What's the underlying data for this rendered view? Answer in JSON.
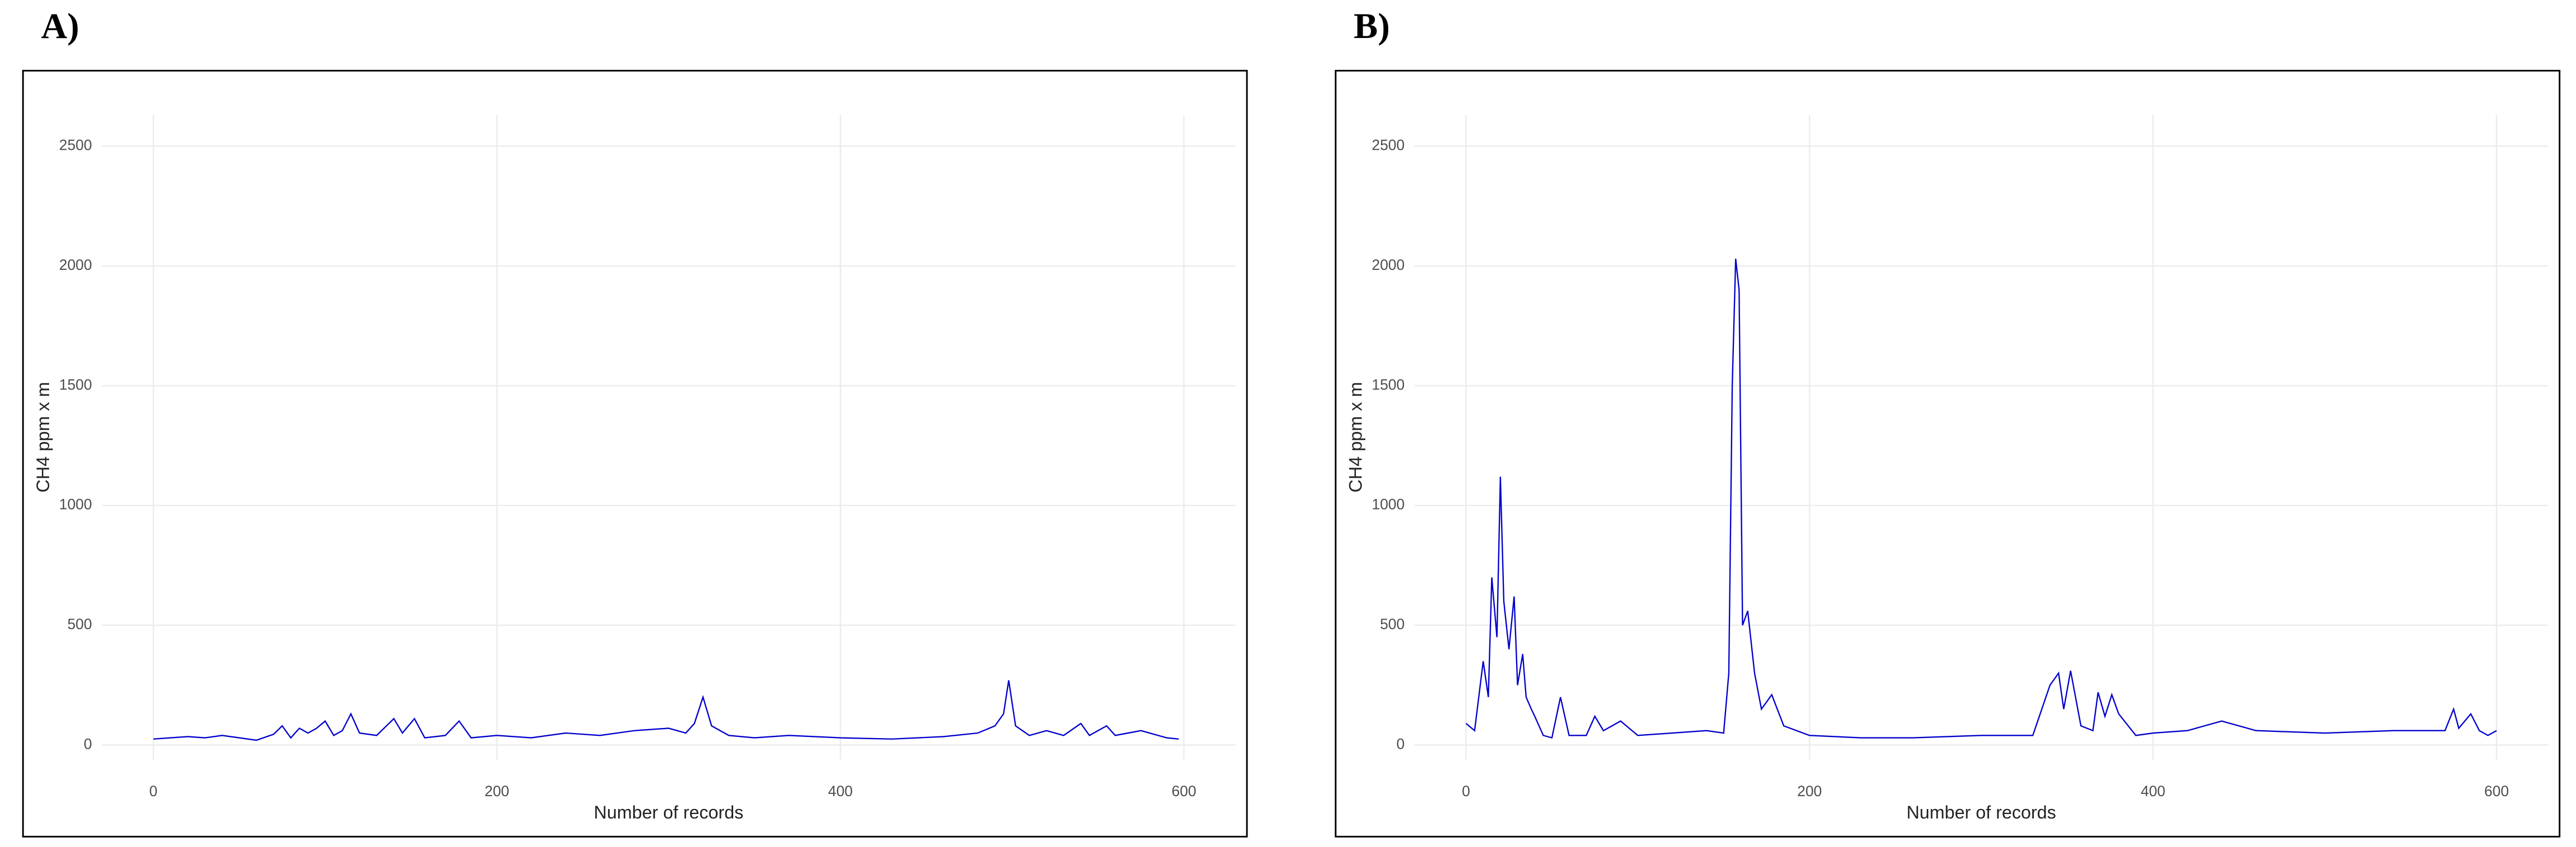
{
  "chart_data": [
    {
      "type": "line",
      "label": "A)",
      "xlabel": "Number of records",
      "ylabel": "CH4 ppm x m",
      "xlim": [
        -30,
        630
      ],
      "ylim": [
        -60,
        2630
      ],
      "xticks": [
        0,
        200,
        400,
        600
      ],
      "yticks": [
        0,
        500,
        1000,
        1500,
        2000,
        2500
      ],
      "grid": true,
      "x": [
        0,
        10,
        20,
        30,
        40,
        50,
        60,
        70,
        75,
        80,
        85,
        90,
        95,
        100,
        105,
        110,
        115,
        120,
        130,
        140,
        145,
        152,
        158,
        170,
        178,
        185,
        200,
        220,
        240,
        260,
        280,
        300,
        310,
        315,
        320,
        325,
        335,
        350,
        370,
        400,
        430,
        460,
        480,
        490,
        495,
        498,
        502,
        510,
        520,
        530,
        540,
        545,
        555,
        560,
        575,
        590,
        597
      ],
      "series": [
        {
          "name": null,
          "color": "#0000cc",
          "values": [
            25,
            30,
            35,
            30,
            40,
            30,
            20,
            45,
            80,
            30,
            70,
            50,
            70,
            100,
            40,
            60,
            130,
            50,
            40,
            110,
            50,
            110,
            30,
            40,
            100,
            30,
            40,
            30,
            50,
            40,
            60,
            70,
            50,
            90,
            200,
            80,
            40,
            30,
            40,
            30,
            25,
            35,
            50,
            80,
            130,
            270,
            80,
            40,
            60,
            40,
            90,
            40,
            80,
            40,
            60,
            30,
            25
          ]
        }
      ]
    },
    {
      "type": "line",
      "label": "B)",
      "xlabel": "Number of records",
      "ylabel": "CH4 ppm x m",
      "xlim": [
        -30,
        630
      ],
      "ylim": [
        -60,
        2630
      ],
      "xticks": [
        0,
        200,
        400,
        600
      ],
      "yticks": [
        0,
        500,
        1000,
        1500,
        2000,
        2500
      ],
      "grid": true,
      "x": [
        0,
        5,
        10,
        13,
        15,
        18,
        20,
        22,
        25,
        28,
        30,
        33,
        35,
        38,
        40,
        45,
        50,
        55,
        60,
        70,
        75,
        80,
        90,
        100,
        120,
        140,
        150,
        153,
        155,
        157,
        159,
        161,
        164,
        168,
        172,
        178,
        185,
        200,
        230,
        260,
        300,
        330,
        340,
        345,
        348,
        352,
        358,
        365,
        368,
        372,
        376,
        380,
        390,
        400,
        420,
        440,
        460,
        500,
        540,
        570,
        575,
        578,
        585,
        590,
        595,
        600
      ],
      "series": [
        {
          "name": null,
          "color": "#0000cc",
          "values": [
            90,
            60,
            350,
            200,
            700,
            450,
            1120,
            600,
            400,
            620,
            250,
            380,
            200,
            150,
            120,
            40,
            30,
            200,
            40,
            40,
            120,
            60,
            100,
            40,
            50,
            60,
            50,
            300,
            1500,
            2030,
            1900,
            500,
            560,
            300,
            150,
            210,
            80,
            40,
            30,
            30,
            40,
            40,
            250,
            300,
            150,
            310,
            80,
            60,
            220,
            120,
            210,
            130,
            40,
            50,
            60,
            100,
            60,
            50,
            60,
            60,
            150,
            70,
            130,
            60,
            40,
            60
          ]
        }
      ]
    }
  ]
}
